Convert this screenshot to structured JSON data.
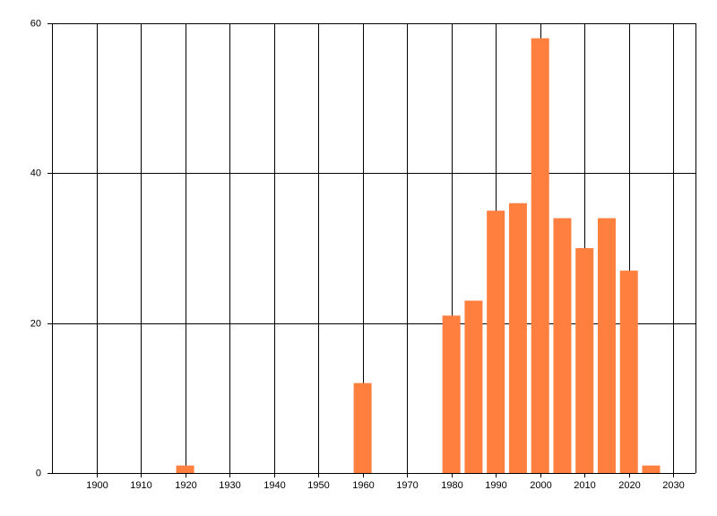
{
  "chart_data": {
    "type": "bar",
    "x": [
      1920,
      1960,
      1980,
      1985,
      1990,
      1995,
      2000,
      2005,
      2010,
      2015,
      2020,
      2025
    ],
    "values": [
      1,
      12,
      21,
      23,
      35,
      36,
      58,
      34,
      30,
      34,
      27,
      1
    ],
    "color": "#ff7f3f",
    "xlim": [
      1890,
      2035
    ],
    "xticks": [
      1900,
      1910,
      1920,
      1930,
      1940,
      1950,
      1960,
      1970,
      1980,
      1990,
      2000,
      2010,
      2020,
      2030
    ],
    "ylim": [
      0,
      60
    ],
    "yticks": [
      0,
      20,
      40,
      60
    ],
    "grid": true
  }
}
